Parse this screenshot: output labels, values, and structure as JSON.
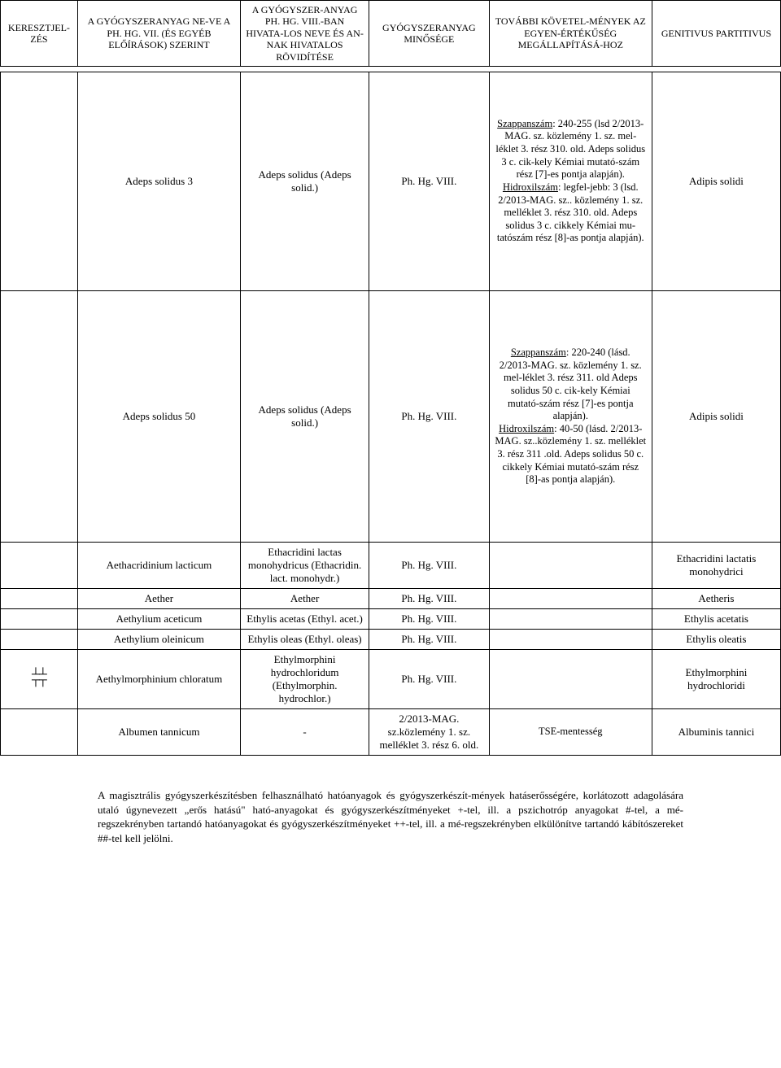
{
  "header": {
    "c0": "KERESZTJEL-ZÉS",
    "c1": "A GYÓGYSZERANYAG NE-VE A PH. HG. VII. (ÉS EGYÉB ELŐÍRÁSOK) SZERINT",
    "c2": "A GYÓGYSZER-ANYAG PH. HG. VIII.-BAN HIVATA-LOS NEVE ÉS AN-NAK HIVATALOS RÖVIDÍTÉSE",
    "c3": "GYÓGYSZERANYAG MINŐSÉGE",
    "c4": "TOVÁBBI KÖVETEL-MÉNYEK AZ EGYEN-ÉRTÉKŰSÉG MEGÁLLAPÍTÁSÁ-HOZ",
    "c5": "GENITIVUS PARTITIVUS"
  },
  "rows": [
    {
      "c0": "",
      "c1": "Adeps solidus 3",
      "c2": "Adeps solidus (Adeps solid.)",
      "c3": "Ph. Hg. VIII.",
      "c4_html": "<span class='u'>Szappanszám</span>: 240-255 (lsd 2/2013-MAG. sz. közlemény 1. sz. mel-léklet 3. rész 310. old. Adeps solidus 3 c. cik-kely Kémiai mutató-szám rész [7]-es pontja alapján). <br><span class='u'>Hidroxilszám</span>: legfel-jebb: 3 (lsd. 2/2013-MAG. sz.. közlemény 1. sz. melléklet 3. rész 310. old. Adeps solidus 3 c. cikkely Kémiai mu-tatószám rész [8]-as pontja alapján).",
      "c5": "Adipis solidi",
      "row_class": "tall1"
    },
    {
      "c0": "",
      "c1": "Adeps solidus 50",
      "c2": "Adeps solidus (Adeps solid.)",
      "c3": "Ph. Hg. VIII.",
      "c4_html": "<span class='u'>Szappanszám</span>: 220-240 (lásd. 2/2013-MAG. sz. közlemény 1. sz. mel-léklet 3. rész  311. old Adeps solidus 50 c. cik-kely Kémiai mutató-szám rész [7]-es pontja alapján). <br><span class='u'>Hidroxilszám</span>: 40-50 (lásd. 2/2013-MAG. sz..közlemény 1. sz. melléklet 3. rész  311 .old. Adeps solidus 50 c. cikkely Kémiai mutató-szám rész [8]-as pontja alapján).",
      "c5": "Adipis solidi",
      "row_class": "tall2"
    },
    {
      "c0": "",
      "c1": "Aethacridinium lacticum",
      "c2": "Ethacridini lactas monohydricus (Ethacridin. lact. monohydr.)",
      "c3": "Ph. Hg. VIII.",
      "c4_html": "",
      "c5": "Ethacridini lactatis monohydrici"
    },
    {
      "c0": "",
      "c1": "Aether",
      "c2": "Aether",
      "c3": "Ph. Hg. VIII.",
      "c4_html": "",
      "c5": "Aetheris"
    },
    {
      "c0": "",
      "c1": "Aethylium aceticum",
      "c2": "Ethylis acetas (Ethyl. acet.)",
      "c3": "Ph. Hg. VIII.",
      "c4_html": "",
      "c5": "Ethylis acetatis"
    },
    {
      "c0": "",
      "c1": "Aethylium oleinicum",
      "c2": "Ethylis oleas (Ethyl. oleas)",
      "c3": "Ph. Hg. VIII.",
      "c4_html": "",
      "c5": "Ethylis oleatis"
    },
    {
      "c0_sym": true,
      "c1": "Aethylmorphinium chloratum",
      "c2": "Ethylmorphini hydrochloridum (Ethylmorphin. hydrochlor.)",
      "c3": "Ph. Hg. VIII.",
      "c4_html": "",
      "c5": "Ethylmorphini hydrochloridi"
    },
    {
      "c0": "",
      "c1": "Albumen tannicum",
      "c2": "-",
      "c3": "2/2013-MAG. sz.közlemény 1. sz. melléklet 3. rész 6. old.",
      "c4_html": "TSE-mentesség",
      "c5": "Albuminis tannici"
    }
  ],
  "footnote": "A magisztrális gyógyszerkészítésben felhasználható hatóanyagok és gyógyszerkészít-mények hatáserősségére, korlátozott adagolására utaló úgynevezett „erős hatású\" ható-anyagokat és gyógyszerkészítményeket +-tel, ill. a pszichotróp anyagokat #-tel, a mé-regszekrényben tartandó hatóanyagokat és gyógyszerkészítményeket ++-tel, ill. a mé-regszekrényben elkülönítve tartandó kábítószereket ##-tel kell jelölni."
}
